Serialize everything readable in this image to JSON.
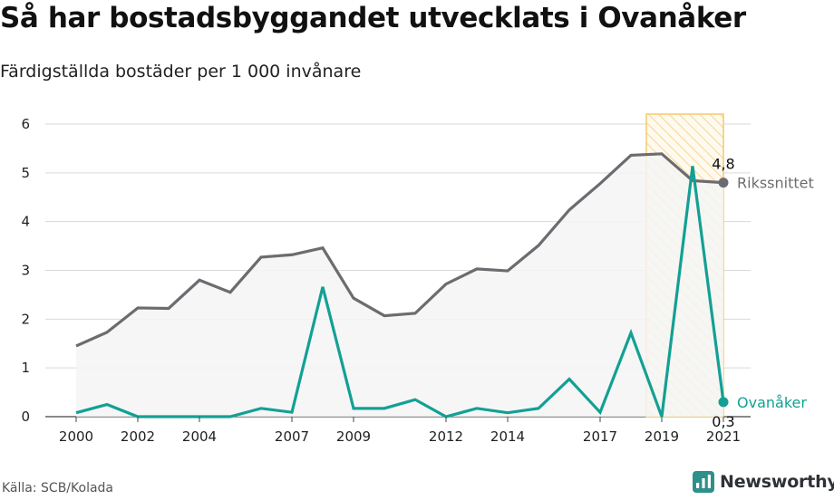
{
  "title": "Så har bostadsbyggandet utvecklats i Ovanåker",
  "subtitle": "Färdigställda bostäder per 1 000 invånare",
  "source": "Källa: SCB/Kolada",
  "brand": {
    "name": "Newsworthy",
    "icon": "newsworthy-logo-icon",
    "color": "#2f8f8a"
  },
  "chart_data": {
    "type": "line",
    "title": "Så har bostadsbyggandet utvecklats i Ovanåker",
    "subtitle": "Färdigställda bostäder per 1 000 invånare",
    "ylim": [
      0,
      6
    ],
    "yticks": [
      "0",
      "1",
      "2",
      "3",
      "4",
      "5",
      "6"
    ],
    "xlim": [
      1999.5,
      2021.5
    ],
    "xticks": [
      "2000",
      "2002",
      "2004",
      "2007",
      "2009",
      "2012",
      "2014",
      "2017",
      "2019",
      "2021"
    ],
    "grid": "horizontal",
    "x": [
      2000,
      2001,
      2002,
      2003,
      2004,
      2005,
      2006,
      2007,
      2008,
      2009,
      2010,
      2011,
      2012,
      2013,
      2014,
      2015,
      2016,
      2017,
      2018,
      2019,
      2020,
      2021
    ],
    "series": [
      {
        "name": "Rikssnittet",
        "color": "#6e6b70",
        "area_fill": "#f4f4f5",
        "values": [
          1.45,
          1.73,
          2.23,
          2.22,
          2.8,
          2.55,
          3.27,
          3.32,
          3.46,
          2.43,
          2.07,
          2.12,
          2.72,
          3.03,
          2.99,
          3.51,
          4.24,
          4.78,
          5.36,
          5.39,
          4.84,
          4.8
        ],
        "end_value_label": "4,8"
      },
      {
        "name": "Ovanåker",
        "color": "#13a094",
        "values": [
          0.08,
          0.25,
          0.0,
          0.0,
          0.0,
          0.0,
          0.17,
          0.09,
          2.66,
          0.17,
          0.17,
          0.35,
          0.0,
          0.17,
          0.08,
          0.17,
          0.77,
          0.09,
          1.72,
          0.0,
          5.14,
          0.3
        ],
        "end_value_label": "0,3"
      }
    ],
    "highlight": {
      "from": 2019,
      "to": 2021,
      "pattern": "hatched",
      "color": "#f6c96a"
    }
  }
}
